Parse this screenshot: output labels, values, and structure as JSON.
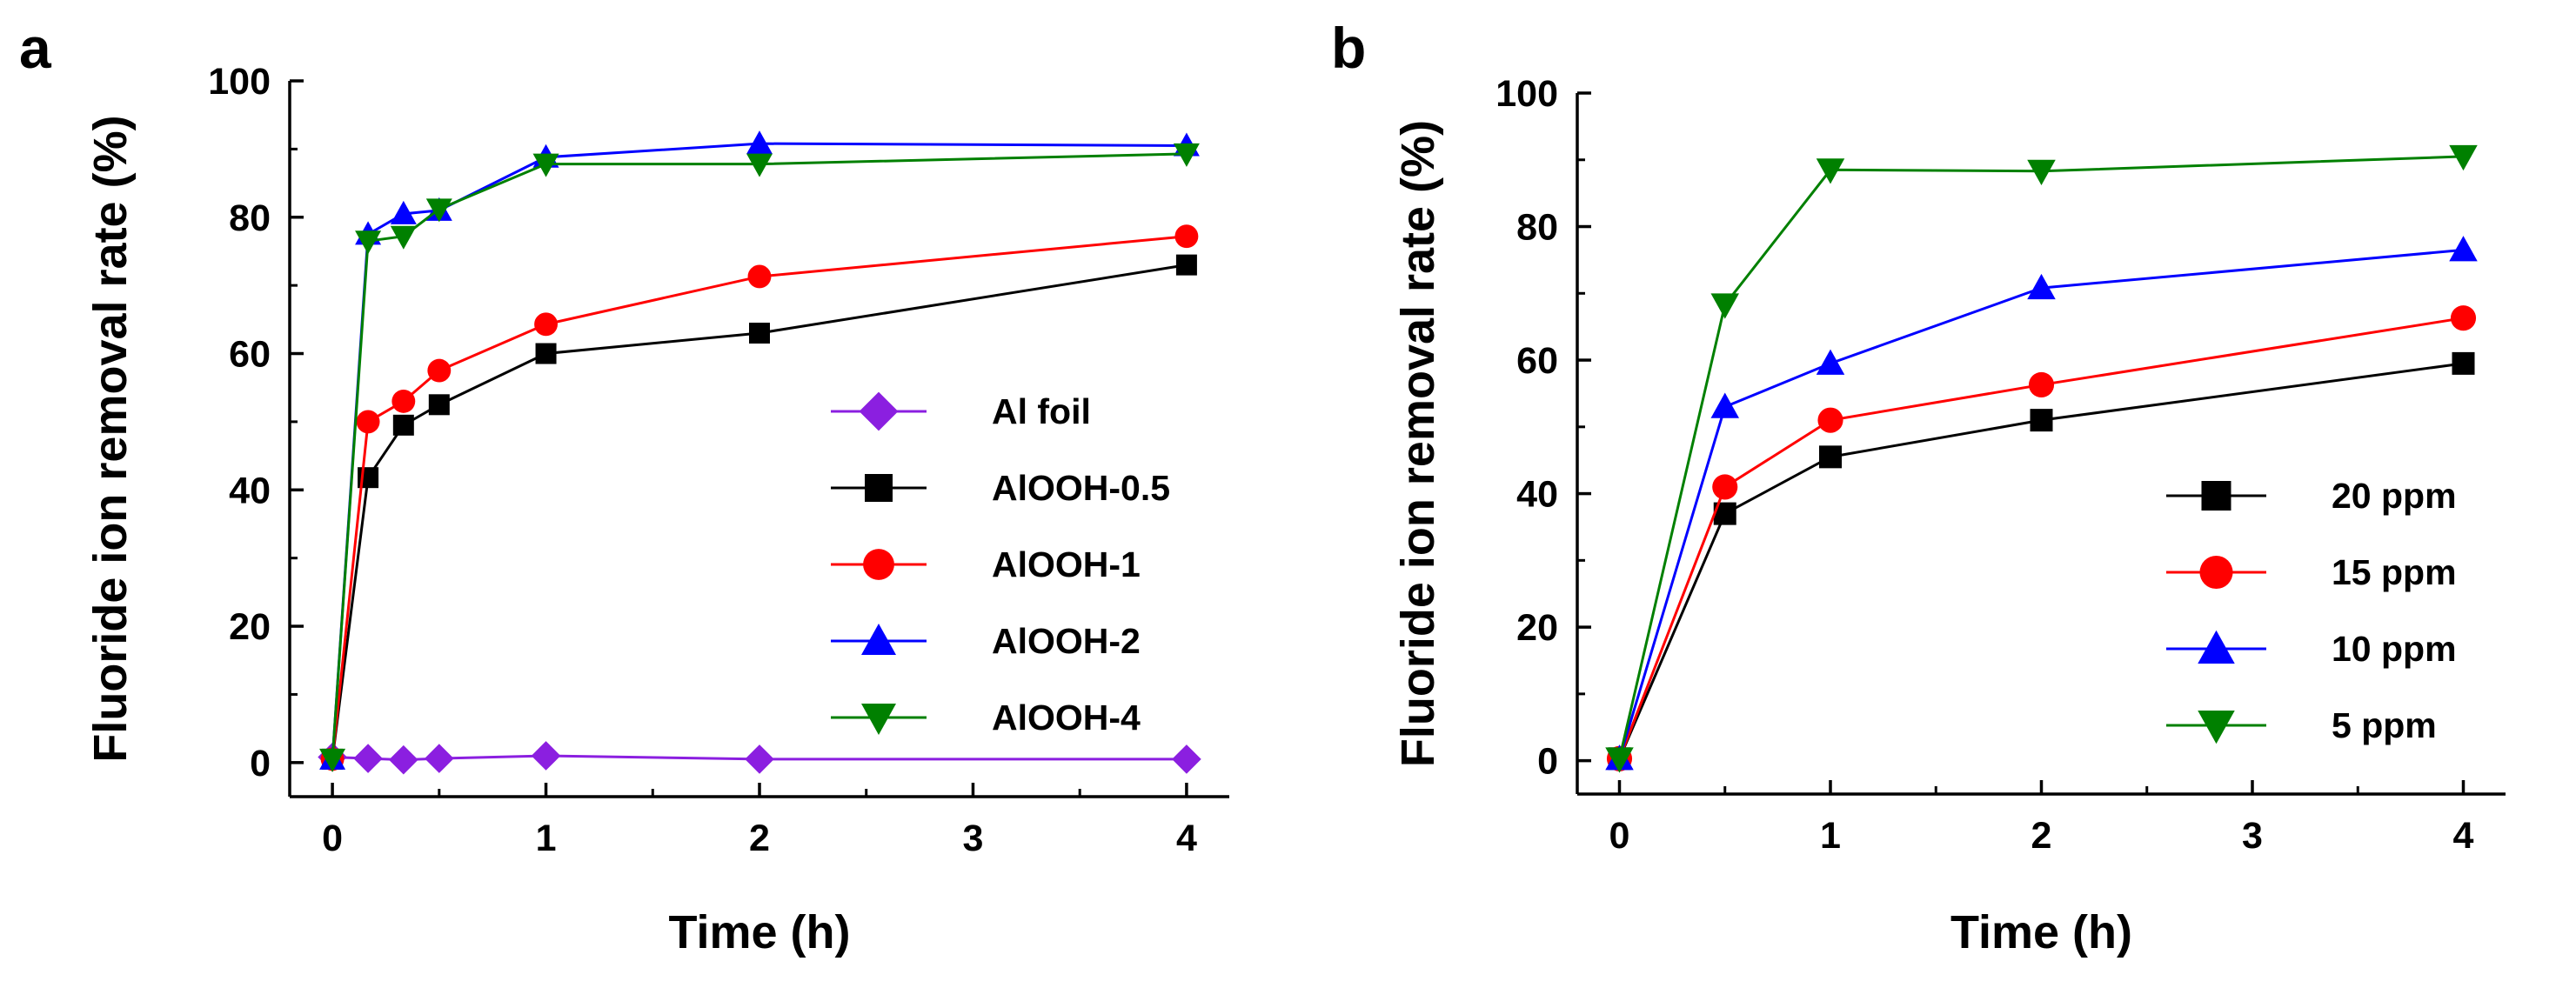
{
  "chart_data": [
    {
      "panel": "a",
      "type": "line",
      "xlabel": "Time (h)",
      "ylabel": "Fluoride ion removal rate (%)",
      "xlim": [
        -0.2,
        4.2
      ],
      "ylim": [
        -5,
        100
      ],
      "xticks": [
        0,
        1,
        2,
        3,
        4
      ],
      "yticks": [
        0,
        20,
        40,
        60,
        80,
        100
      ],
      "legend_position": "center-right",
      "series": [
        {
          "name": "Al foil",
          "color": "#8B1FE0",
          "marker": "diamond",
          "x": [
            0,
            0.167,
            0.333,
            0.5,
            1,
            2,
            4
          ],
          "y": [
            0.8,
            0.6,
            0.4,
            0.6,
            1.0,
            0.5,
            0.5
          ]
        },
        {
          "name": "AlOOH-0.5",
          "color": "#000000",
          "marker": "square",
          "x": [
            0,
            0.167,
            0.333,
            0.5,
            1,
            2,
            4
          ],
          "y": [
            0.5,
            41.8,
            49.5,
            52.5,
            60.0,
            63.0,
            73.0
          ]
        },
        {
          "name": "AlOOH-1",
          "color": "#FF0000",
          "marker": "circle",
          "x": [
            0,
            0.167,
            0.333,
            0.5,
            1,
            2,
            4
          ],
          "y": [
            0.5,
            50.0,
            53.0,
            57.5,
            64.3,
            71.3,
            77.2
          ]
        },
        {
          "name": "AlOOH-2",
          "color": "#0000FF",
          "marker": "triangle-up",
          "x": [
            0,
            0.167,
            0.333,
            0.5,
            1,
            2,
            4
          ],
          "y": [
            0.5,
            77.5,
            80.5,
            81.0,
            88.8,
            90.8,
            90.5
          ]
        },
        {
          "name": "AlOOH-4",
          "color": "#008000",
          "marker": "triangle-down",
          "x": [
            0,
            0.167,
            0.333,
            0.5,
            1,
            2,
            4
          ],
          "y": [
            0.5,
            76.5,
            77.2,
            81.2,
            87.8,
            87.8,
            89.3
          ]
        }
      ]
    },
    {
      "panel": "b",
      "type": "line",
      "xlabel": "Time (h)",
      "ylabel": "Fluoride ion removal rate (%)",
      "xlim": [
        -0.2,
        4.2
      ],
      "ylim": [
        -5,
        100
      ],
      "xticks": [
        0,
        1,
        2,
        3,
        4
      ],
      "yticks": [
        0,
        20,
        40,
        60,
        80,
        100
      ],
      "legend_position": "bottom-right",
      "series": [
        {
          "name": "20 ppm",
          "color": "#000000",
          "marker": "square",
          "x": [
            0,
            0.5,
            1,
            2,
            4
          ],
          "y": [
            0.3,
            37.0,
            45.5,
            51.0,
            59.5
          ]
        },
        {
          "name": "15 ppm",
          "color": "#FF0000",
          "marker": "circle",
          "x": [
            0,
            0.5,
            1,
            2,
            4
          ],
          "y": [
            0.3,
            41.0,
            51.0,
            56.3,
            66.3
          ]
        },
        {
          "name": "10 ppm",
          "color": "#0000FF",
          "marker": "triangle-up",
          "x": [
            0,
            0.5,
            1,
            2,
            4
          ],
          "y": [
            0.3,
            53.0,
            59.5,
            70.8,
            76.5
          ]
        },
        {
          "name": "5 ppm",
          "color": "#008000",
          "marker": "triangle-down",
          "x": [
            0,
            0.5,
            1,
            2,
            4
          ],
          "y": [
            0.3,
            68.3,
            88.5,
            88.3,
            90.5
          ]
        }
      ]
    }
  ]
}
